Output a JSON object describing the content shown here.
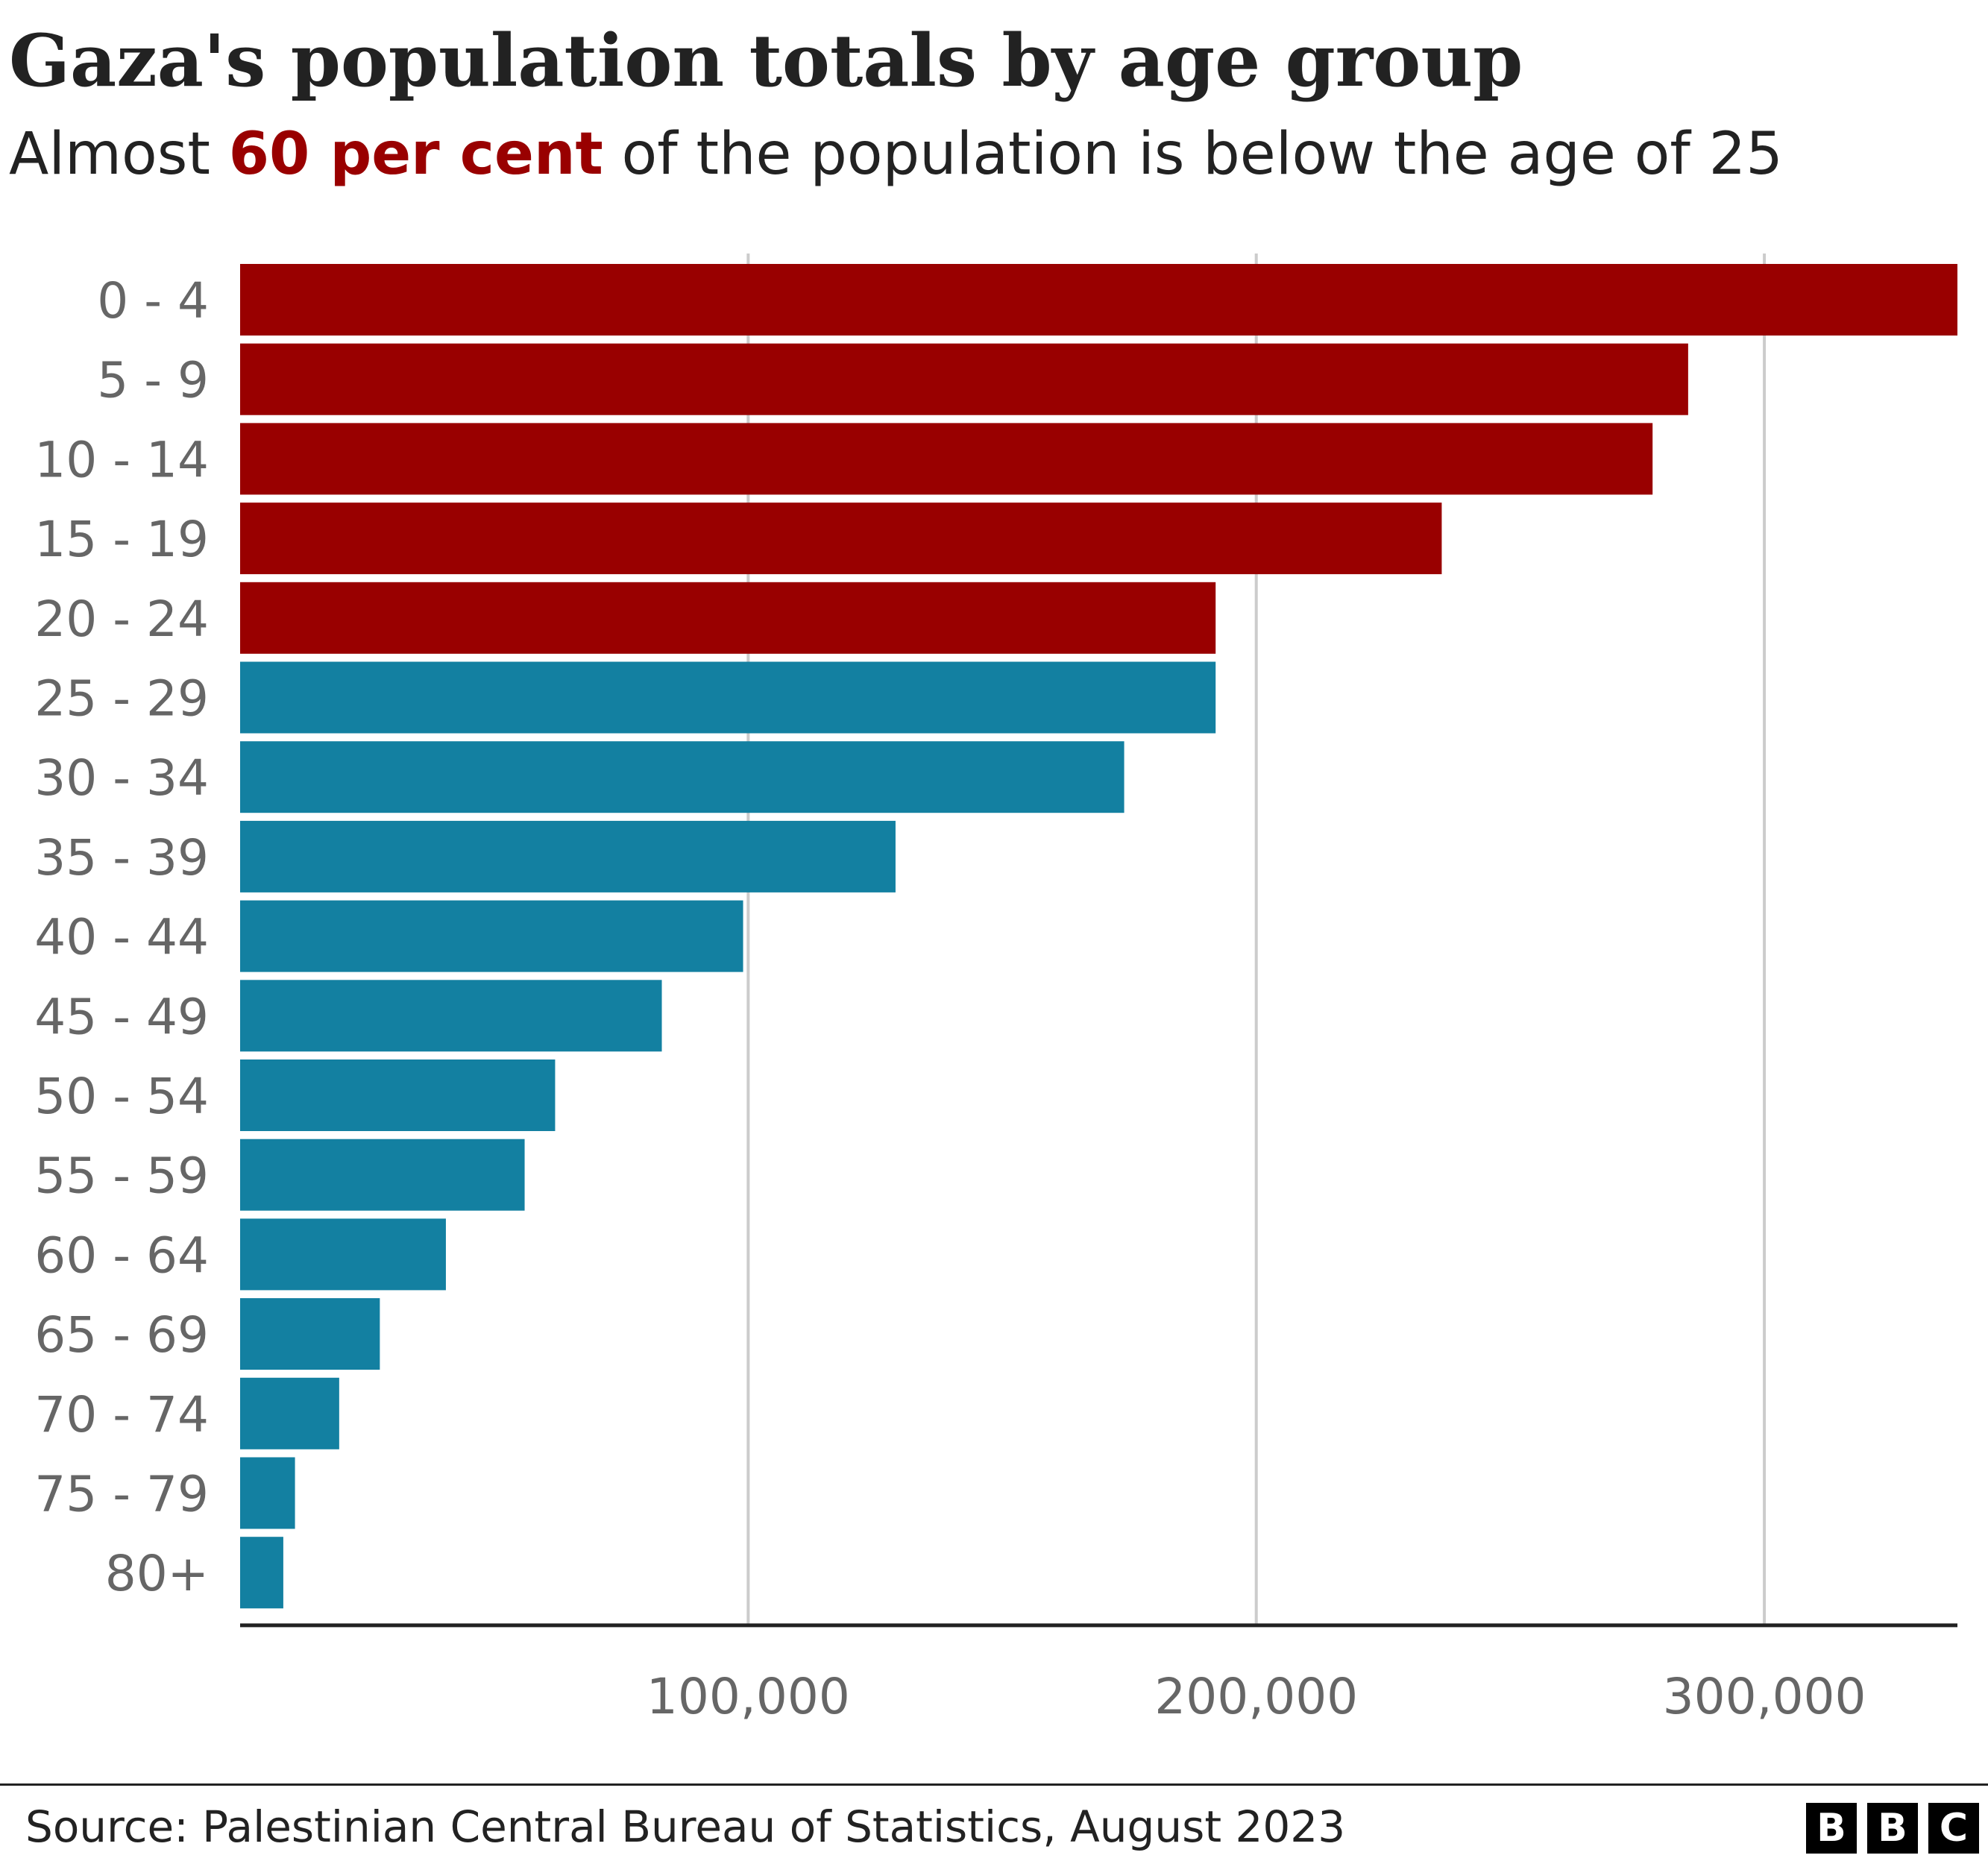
{
  "header": {
    "title": "Gaza's population totals by age group",
    "subtitle_before": "Almost ",
    "subtitle_highlight": "60 per cent",
    "subtitle_after": " of the population is below the age of 25"
  },
  "footer": {
    "source": "Source: Palestinian Central Bureau of Statistics, August 2023",
    "logo_letters": [
      "B",
      "B",
      "C"
    ]
  },
  "colors": {
    "under_25": "#990000",
    "over_25": "#1380A1",
    "gridline": "#cccccc",
    "axis": "#222222",
    "tick_text": "#666666",
    "category_text": "#666666"
  },
  "chart_data": {
    "type": "bar",
    "orientation": "horizontal",
    "title": "Gaza's population totals by age group",
    "subtitle": "Almost 60 per cent of the population is below the age of 25",
    "categories": [
      "0 - 4",
      "5 - 9",
      "10 - 14",
      "15 - 19",
      "20 - 24",
      "25 - 29",
      "30 - 34",
      "35 - 39",
      "40 - 44",
      "45 - 49",
      "50 - 54",
      "55 - 59",
      "60 - 64",
      "65 - 69",
      "70 - 74",
      "75 - 79",
      "80+"
    ],
    "values": [
      338000,
      285000,
      278000,
      236500,
      192000,
      192000,
      174000,
      129000,
      99000,
      83000,
      62000,
      56000,
      40500,
      27500,
      19500,
      10800,
      8500
    ],
    "groups": [
      "under_25",
      "under_25",
      "under_25",
      "under_25",
      "under_25",
      "over_25",
      "over_25",
      "over_25",
      "over_25",
      "over_25",
      "over_25",
      "over_25",
      "over_25",
      "over_25",
      "over_25",
      "over_25",
      "over_25"
    ],
    "xlim": [
      0,
      338000
    ],
    "xticks": [
      100000,
      200000,
      300000
    ],
    "xtick_labels": [
      "100,000",
      "200,000",
      "300,000"
    ],
    "grid": true,
    "xlabel": "",
    "ylabel": ""
  }
}
